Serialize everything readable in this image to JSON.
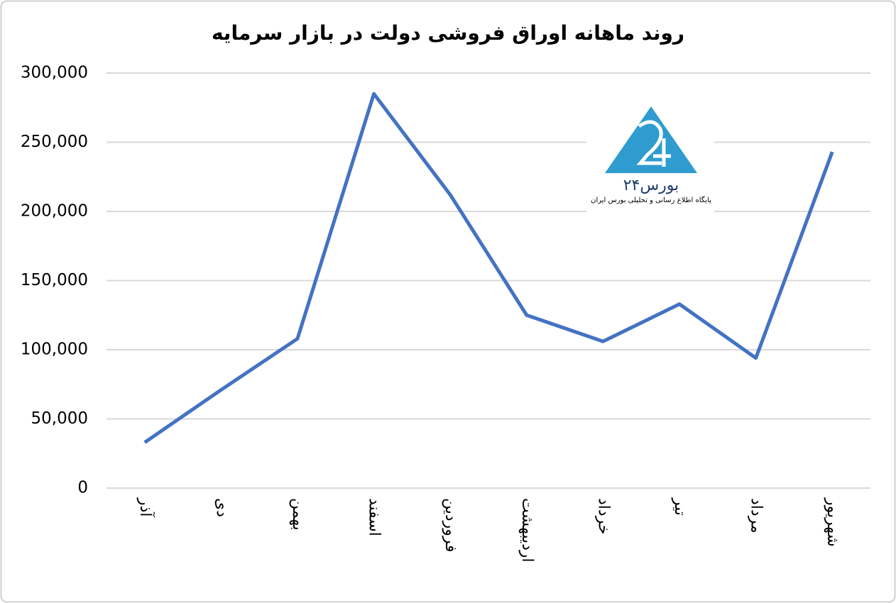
{
  "chart_data": {
    "type": "line",
    "title": "روند ماهانه اوراق فروشی دولت در بازار سرمایه",
    "categories": [
      "آذر",
      "دی",
      "بهمن",
      "اسفند",
      "فروردین",
      "اردیبهشت",
      "خرداد",
      "تیر",
      "مرداد",
      "شهریور"
    ],
    "series": [
      {
        "name": "اوراق فروشی",
        "color": "#4472c4",
        "values": [
          33000,
          71000,
          108000,
          285000,
          212000,
          125000,
          106000,
          133000,
          94000,
          243000
        ]
      }
    ],
    "ylim": [
      0,
      300000
    ],
    "yticks": [
      0,
      {
        "value": 50000,
        "label": "50,000"
      },
      {
        "value": 100000,
        "label": "100,000"
      },
      {
        "value": 150000,
        "label": "150,000"
      },
      {
        "value": 200000,
        "label": "200,000"
      },
      {
        "value": 250000,
        "label": "250,000"
      },
      {
        "value": 300000,
        "label": "300,000"
      }
    ],
    "grid": true,
    "watermark": {
      "name": "بورس۲۴",
      "tagline": "پایگاه اطلاع رسانی و تحلیلی بورس ایران"
    }
  }
}
